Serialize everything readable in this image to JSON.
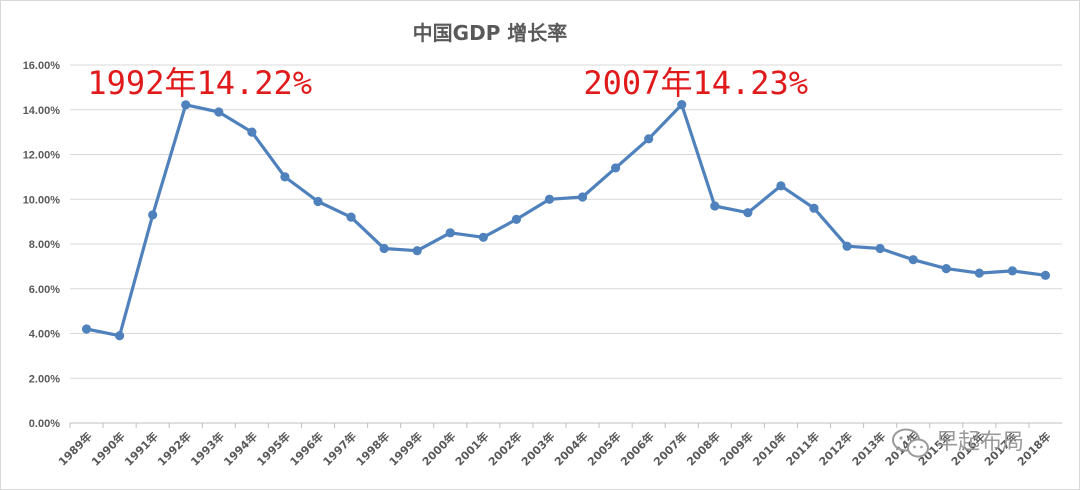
{
  "chart_data": {
    "type": "line",
    "title": "中国GDP 增长率",
    "xlabel": "",
    "ylabel": "",
    "ylim": [
      0,
      16
    ],
    "yticks": [
      "0.00%",
      "2.00%",
      "4.00%",
      "6.00%",
      "8.00%",
      "10.00%",
      "12.00%",
      "14.00%",
      "16.00%"
    ],
    "grid": true,
    "categories": [
      "1989年",
      "1990年",
      "1991年",
      "1992年",
      "1993年",
      "1994年",
      "1995年",
      "1996年",
      "1997年",
      "1998年",
      "1999年",
      "2000年",
      "2001年",
      "2002年",
      "2003年",
      "2004年",
      "2005年",
      "2006年",
      "2007年",
      "2008年",
      "2009年",
      "2010年",
      "2011年",
      "2012年",
      "2013年",
      "2014年",
      "2015年",
      "2016年",
      "2017年",
      "2018年"
    ],
    "values": [
      4.2,
      3.9,
      9.3,
      14.22,
      13.9,
      13.0,
      11.0,
      9.9,
      9.2,
      7.8,
      7.7,
      8.5,
      8.3,
      9.1,
      10.0,
      10.1,
      11.4,
      12.7,
      14.23,
      9.7,
      9.4,
      10.6,
      9.6,
      7.9,
      7.8,
      7.3,
      6.9,
      6.7,
      6.8,
      6.6
    ],
    "line_color": "#4f81bd",
    "annotations": [
      {
        "text": "1992年14.22%",
        "category": "1992年"
      },
      {
        "text": "2007年14.23%",
        "category": "2007年"
      }
    ],
    "annotation_color": "#e0191b"
  },
  "watermark": {
    "icon": "wechat-icon",
    "text": "早起布局"
  }
}
